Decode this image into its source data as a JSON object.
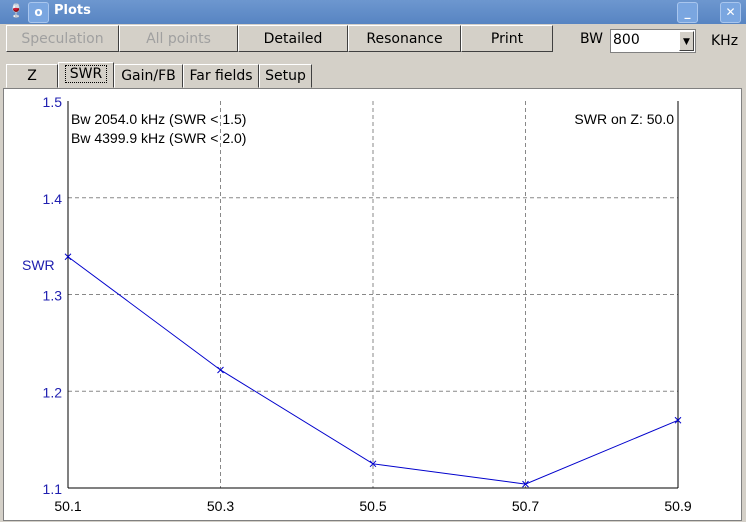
{
  "window": {
    "title": "Plots"
  },
  "toolbar": {
    "buttons": [
      {
        "label": "Speculation",
        "enabled": false
      },
      {
        "label": "All points",
        "enabled": false
      },
      {
        "label": "Detailed",
        "enabled": true
      },
      {
        "label": "Resonance",
        "enabled": true
      },
      {
        "label": "Print",
        "enabled": true
      }
    ],
    "bw_label": "BW",
    "bw_value": "800",
    "bw_unit": "KHz"
  },
  "tabs": [
    {
      "label": "Z"
    },
    {
      "label": "SWR",
      "active": true
    },
    {
      "label": "Gain/FB"
    },
    {
      "label": "Far fields"
    },
    {
      "label": "Setup"
    }
  ],
  "chart_data": {
    "type": "line",
    "ylabel": "SWR",
    "x": [
      50.1,
      50.3,
      50.5,
      50.7,
      50.9
    ],
    "y": [
      1.339,
      1.222,
      1.125,
      1.104,
      1.17
    ],
    "xticks": [
      "50.1",
      "50.3",
      "50.5",
      "50.7",
      "50.9"
    ],
    "yticks": [
      "1.1",
      "1.2",
      "1.3",
      "1.4",
      "1.5"
    ],
    "xlim": [
      50.1,
      50.9
    ],
    "ylim": [
      1.1,
      1.5
    ],
    "grid": true,
    "line_color": "#0000cc",
    "annotations": [
      "Bw 2054.0 kHz (SWR < 1.5)",
      "Bw 4399.9 kHz (SWR < 2.0)"
    ],
    "z_note": "SWR on Z: 50.0"
  }
}
